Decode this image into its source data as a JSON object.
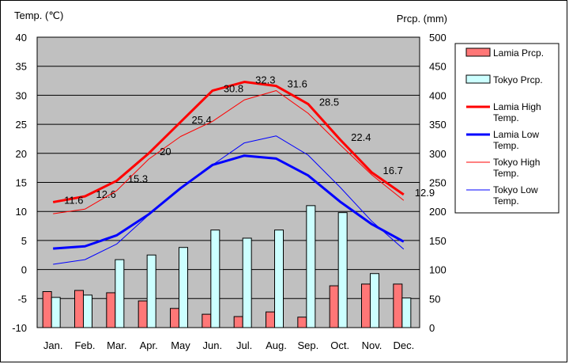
{
  "chart_data": {
    "type": "bar+line",
    "title": "",
    "left_axis_label": "Temp. (℃)",
    "right_axis_label": "Prcp. (mm)",
    "left_range": [
      -10,
      40
    ],
    "left_ticks": [
      40,
      35,
      30,
      25,
      20,
      15,
      10,
      5,
      0,
      -5,
      -10
    ],
    "right_range": [
      0,
      500
    ],
    "right_ticks": [
      500,
      450,
      400,
      350,
      300,
      250,
      200,
      150,
      100,
      50,
      0
    ],
    "categories": [
      "Jan.",
      "Feb.",
      "Mar.",
      "Apr.",
      "May",
      "Jun.",
      "Jul.",
      "Aug.",
      "Sep.",
      "Oct.",
      "Nov.",
      "Dec."
    ],
    "grid": true,
    "legend_position": "right",
    "bars": [
      {
        "name": "Lamia Prcp.",
        "color": "#ff7777",
        "values": [
          62,
          64,
          60,
          46,
          33,
          23,
          19,
          27,
          18,
          72,
          75,
          75
        ]
      },
      {
        "name": "Tokyo Prcp.",
        "color": "#ccffff",
        "values": [
          52,
          56,
          117,
          125,
          138,
          168,
          154,
          168,
          210,
          198,
          93,
          51
        ]
      }
    ],
    "lines": [
      {
        "name": "Lamia High Temp.",
        "color": "#ff0000",
        "width": 3,
        "values": [
          11.6,
          12.6,
          15.3,
          20,
          25.4,
          30.8,
          32.3,
          31.6,
          28.5,
          22.4,
          16.7,
          12.9
        ],
        "labels": [
          "11.6",
          "12.6",
          "15.3",
          "20",
          "25.4",
          "30.8",
          "32.3",
          "31.6",
          "28.5",
          "22.4",
          "16.7",
          "12.9"
        ]
      },
      {
        "name": "Lamia Low Temp.",
        "color": "#0000ff",
        "width": 3,
        "values": [
          3.6,
          4.0,
          5.9,
          9.5,
          14.0,
          18.0,
          19.6,
          19.1,
          16.2,
          11.7,
          7.8,
          4.8
        ]
      },
      {
        "name": "Tokyo High Temp.",
        "color": "#ff0000",
        "width": 1,
        "values": [
          9.6,
          10.4,
          13.6,
          19.0,
          22.9,
          25.5,
          29.2,
          30.8,
          26.9,
          21.5,
          16.3,
          11.9
        ]
      },
      {
        "name": "Tokyo Low Temp.",
        "color": "#0000ff",
        "width": 1,
        "values": [
          0.9,
          1.7,
          4.4,
          9.4,
          14.0,
          18.0,
          21.8,
          23.0,
          19.7,
          14.2,
          8.3,
          3.5
        ]
      }
    ],
    "legend": [
      {
        "kind": "bar",
        "name": "Lamia Prcp.",
        "color": "#ff7777"
      },
      {
        "kind": "bar",
        "name": "Tokyo Prcp.",
        "color": "#ccffff"
      },
      {
        "kind": "line",
        "lines": [
          "Lamia High",
          "Temp."
        ],
        "color": "#ff0000",
        "width": 3
      },
      {
        "kind": "line",
        "lines": [
          "Lamia Low",
          "Temp."
        ],
        "color": "#0000ff",
        "width": 3
      },
      {
        "kind": "line",
        "lines": [
          "Tokyo High",
          "Temp."
        ],
        "color": "#ff0000",
        "width": 1
      },
      {
        "kind": "line",
        "lines": [
          "Tokyo Low",
          "Temp."
        ],
        "color": "#0000ff",
        "width": 1
      }
    ],
    "plot_background": "#c0c0c0"
  }
}
